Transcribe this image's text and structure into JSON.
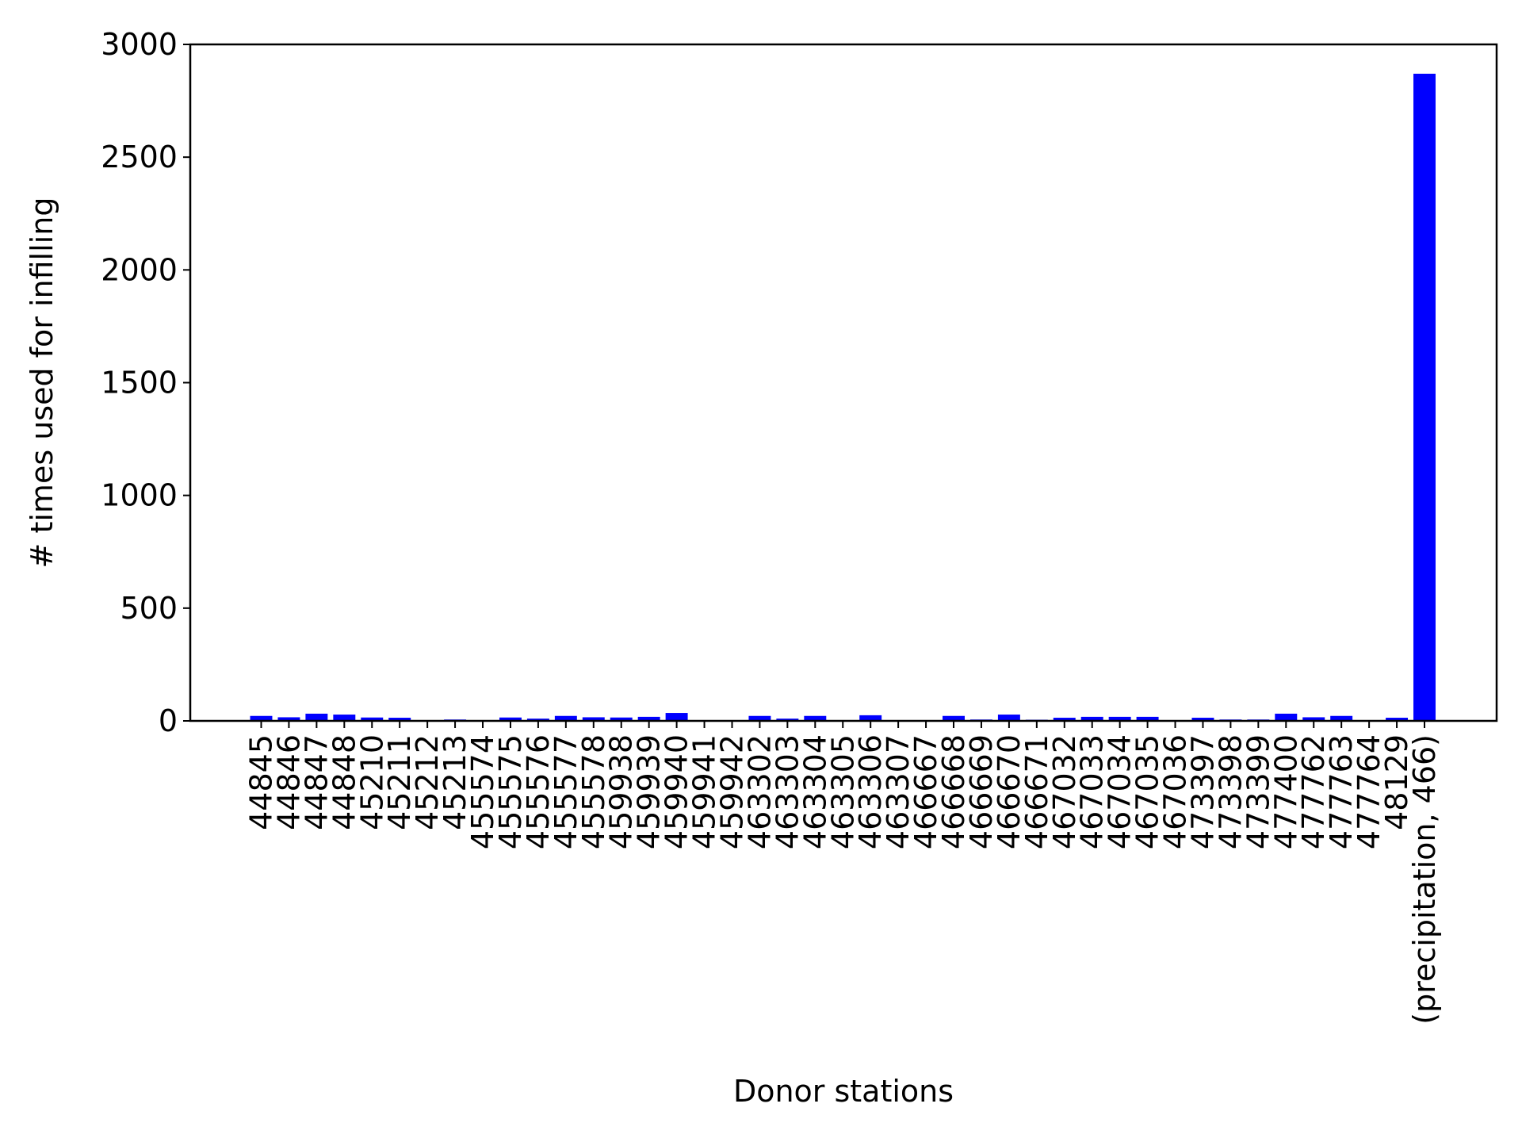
{
  "chart_data": {
    "type": "bar",
    "title": "",
    "xlabel": "Donor stations",
    "ylabel": "# times used for infilling",
    "ylim": [
      0,
      3000
    ],
    "yticks": [
      0,
      500,
      1000,
      1500,
      2000,
      2500,
      3000
    ],
    "grid": false,
    "colors": {
      "bar": "#0000ff",
      "axis": "#000000"
    },
    "categories": [
      "44845",
      "44846",
      "44847",
      "44848",
      "45210",
      "45211",
      "45212",
      "45213",
      "455574",
      "455575",
      "455576",
      "455577",
      "455578",
      "459938",
      "459939",
      "459940",
      "459941",
      "459942",
      "463302",
      "463303",
      "463304",
      "463305",
      "463306",
      "463307",
      "466667",
      "466668",
      "466669",
      "466670",
      "466671",
      "467032",
      "467033",
      "467034",
      "467035",
      "467036",
      "473397",
      "473398",
      "473399",
      "477400",
      "477762",
      "477763",
      "477764",
      "48129",
      "(precipitation, 466)"
    ],
    "values": [
      22,
      16,
      32,
      28,
      15,
      14,
      0,
      6,
      0,
      15,
      10,
      22,
      16,
      15,
      18,
      35,
      0,
      0,
      22,
      10,
      22,
      0,
      25,
      0,
      0,
      22,
      6,
      28,
      5,
      14,
      18,
      18,
      18,
      0,
      14,
      6,
      6,
      32,
      16,
      22,
      0,
      14,
      2870
    ]
  }
}
